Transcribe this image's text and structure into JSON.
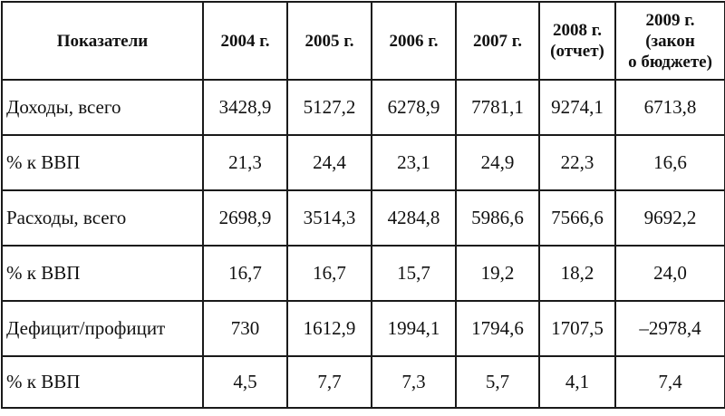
{
  "table": {
    "headers": {
      "indicator": "Показатели",
      "y2004": "2004 г.",
      "y2005": "2005 г.",
      "y2006": "2006 г.",
      "y2007": "2007 г.",
      "y2008_line1": "2008 г.",
      "y2008_line2": "(отчет)",
      "y2009_line1": "2009 г.",
      "y2009_line2": "(закон",
      "y2009_line3": "о бюджете)"
    },
    "rows": [
      {
        "label": "Доходы, всего",
        "values": [
          "3428,9",
          "5127,2",
          "6278,9",
          "7781,1",
          "9274,1",
          "6713,8"
        ]
      },
      {
        "label": "% к ВВП",
        "values": [
          "21,3",
          "24,4",
          "23,1",
          "24,9",
          "22,3",
          "16,6"
        ]
      },
      {
        "label": "Расходы, всего",
        "values": [
          "2698,9",
          "3514,3",
          "4284,8",
          "5986,6",
          "7566,6",
          "9692,2"
        ]
      },
      {
        "label": "% к ВВП",
        "values": [
          "16,7",
          "16,7",
          "15,7",
          "19,2",
          "18,2",
          "24,0"
        ]
      },
      {
        "label": "Дефицит/профицит",
        "values": [
          "730",
          "1612,9",
          "1994,1",
          "1794,6",
          "1707,5",
          "–2978,4"
        ]
      },
      {
        "label": "% к ВВП",
        "values": [
          "4,5",
          "7,7",
          "7,3",
          "5,7",
          "4,1",
          "7,4"
        ]
      }
    ]
  }
}
